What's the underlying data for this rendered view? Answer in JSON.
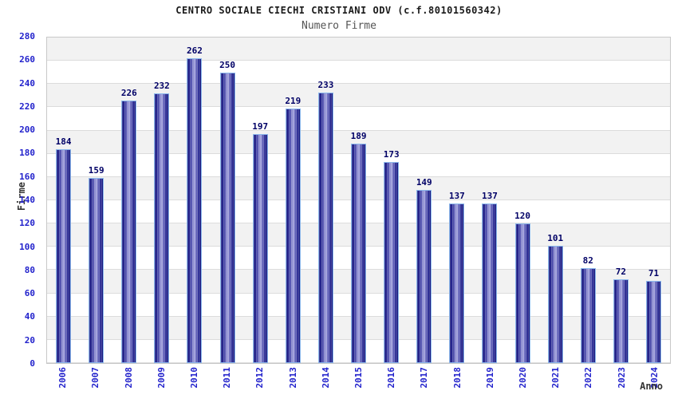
{
  "chart_data": {
    "type": "bar",
    "title": "CENTRO SOCIALE CIECHI CRISTIANI ODV (c.f.80101560342)",
    "subtitle": "Numero Firme",
    "xlabel": "Anno",
    "ylabel": "Firme",
    "categories": [
      "2006",
      "2007",
      "2008",
      "2009",
      "2010",
      "2011",
      "2012",
      "2013",
      "2014",
      "2015",
      "2016",
      "2017",
      "2018",
      "2019",
      "2020",
      "2021",
      "2022",
      "2023",
      "2024"
    ],
    "values": [
      184,
      159,
      226,
      232,
      262,
      250,
      197,
      219,
      233,
      189,
      173,
      149,
      137,
      137,
      120,
      101,
      82,
      72,
      71
    ],
    "ylim": [
      0,
      280
    ],
    "yticks": [
      0,
      20,
      40,
      60,
      80,
      100,
      120,
      140,
      160,
      180,
      200,
      220,
      240,
      260,
      280
    ],
    "grid": "horizontal alternating bands every 20 units",
    "legend": "none",
    "colors": {
      "tick_label_blue": "#2222cc",
      "value_label_navy": "#000066",
      "bar_edge_dark": "#14147a",
      "bar_center_light": "#a8a8e0",
      "bar_border_lightblue": "#8cb8ec",
      "band_gray": "#f2f2f2",
      "band_white": "#ffffff",
      "grid_line": "#dcdcdc",
      "plot_border": "#c8c8c8",
      "title_color": "#1a1a1a",
      "subtitle_color": "#555555",
      "axis_title_color": "#333333"
    }
  }
}
